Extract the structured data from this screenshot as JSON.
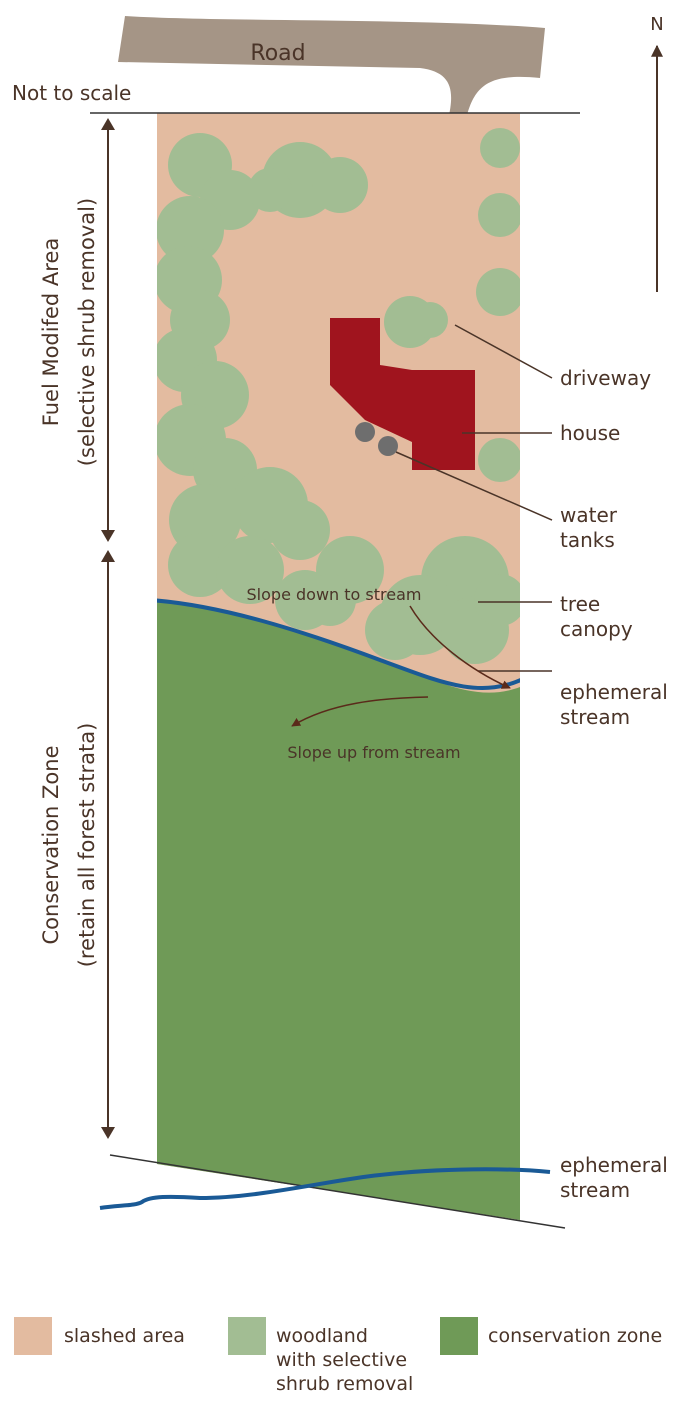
{
  "labels": {
    "road": "Road",
    "north": "N",
    "scale_note": "Not to scale",
    "fuel_title": "Fuel Modifed Area",
    "fuel_sub": "(selective shrub removal)",
    "cons_title": "Conservation Zone",
    "cons_sub": "(retain all forest strata)",
    "driveway": "driveway",
    "house": "house",
    "water_1": "water",
    "water_2": "tanks",
    "tree_1": "tree",
    "tree_2": "canopy",
    "stream_a1": "ephemeral",
    "stream_a2": "stream",
    "stream_b1": "ephemeral",
    "stream_b2": "stream",
    "slope_down": "Slope down to stream",
    "slope_up": "Slope up from stream"
  },
  "legend": [
    {
      "label_lines": [
        "slashed area"
      ],
      "color": "#e3bba0"
    },
    {
      "label_lines": [
        "woodland",
        "with selective",
        "shrub removal"
      ],
      "color": "#a2bd93"
    },
    {
      "label_lines": [
        "conservation zone"
      ],
      "color": "#6f9a57"
    }
  ],
  "colors": {
    "slashed": "#e3bba0",
    "woodland": "#a2bd93",
    "conservation": "#6f9a57",
    "road": "#a59586",
    "house": "#a0141e",
    "stream": "#1a5a96",
    "tank": "#6e6e6e",
    "text": "#4a3428"
  }
}
